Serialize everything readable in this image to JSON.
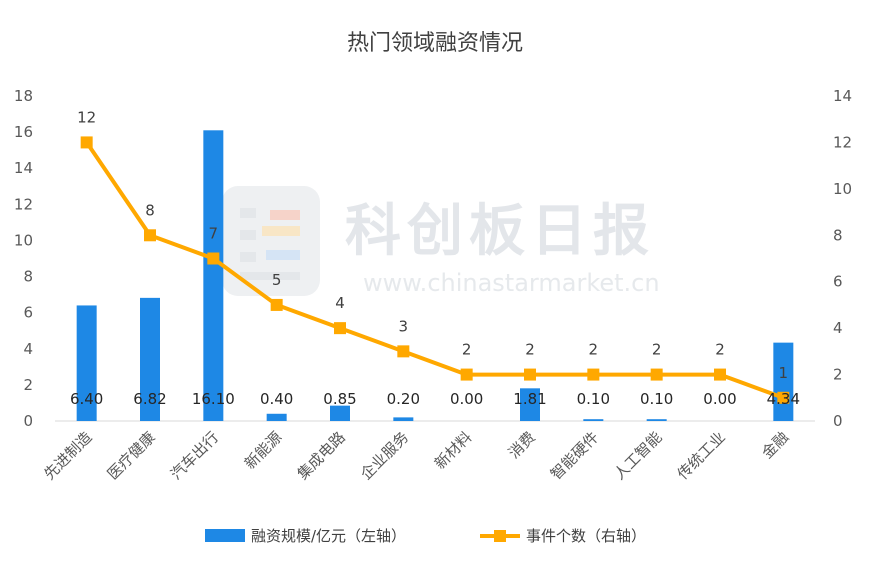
{
  "colors": {
    "bar": "#1e88e5",
    "line": "#ffa800",
    "axis": "#d9d9d9",
    "text": "#595959"
  },
  "watermark": {
    "name": "科创板日报",
    "url": "www.chinastarmarket.cn"
  },
  "chart_data": {
    "type": "bar",
    "title": "热门领域融资情况",
    "categories": [
      "先进制造",
      "医疗健康",
      "汽车出行",
      "新能源",
      "集成电路",
      "企业服务",
      "新材料",
      "消费",
      "智能硬件",
      "人工智能",
      "传统工业",
      "金融"
    ],
    "series": [
      {
        "name": "融资规模/亿元（左轴）",
        "type": "bar",
        "axis": "left",
        "values": [
          6.4,
          6.82,
          16.1,
          0.4,
          0.85,
          0.2,
          0.0,
          1.81,
          0.1,
          0.1,
          0.0,
          4.34
        ],
        "labels": [
          "6.40",
          "6.82",
          "16.10",
          "0.40",
          "0.85",
          "0.20",
          "0.00",
          "1.81",
          "0.10",
          "0.10",
          "0.00",
          "4.34"
        ]
      },
      {
        "name": "事件个数（右轴）",
        "type": "line",
        "axis": "right",
        "values": [
          12,
          8,
          7,
          5,
          4,
          3,
          2,
          2,
          2,
          2,
          2,
          1
        ],
        "labels": [
          "12",
          "8",
          "7",
          "5",
          "4",
          "3",
          "2",
          "2",
          "2",
          "2",
          "2",
          "1"
        ]
      }
    ],
    "y_left": {
      "min": 0,
      "max": 18,
      "ticks": [
        "0",
        "2",
        "4",
        "6",
        "8",
        "10",
        "12",
        "14",
        "16",
        "18"
      ]
    },
    "y_right": {
      "min": 0,
      "max": 14,
      "ticks": [
        "0",
        "2",
        "4",
        "6",
        "8",
        "10",
        "12",
        "14"
      ]
    },
    "grid": false,
    "legend_position": "bottom"
  }
}
